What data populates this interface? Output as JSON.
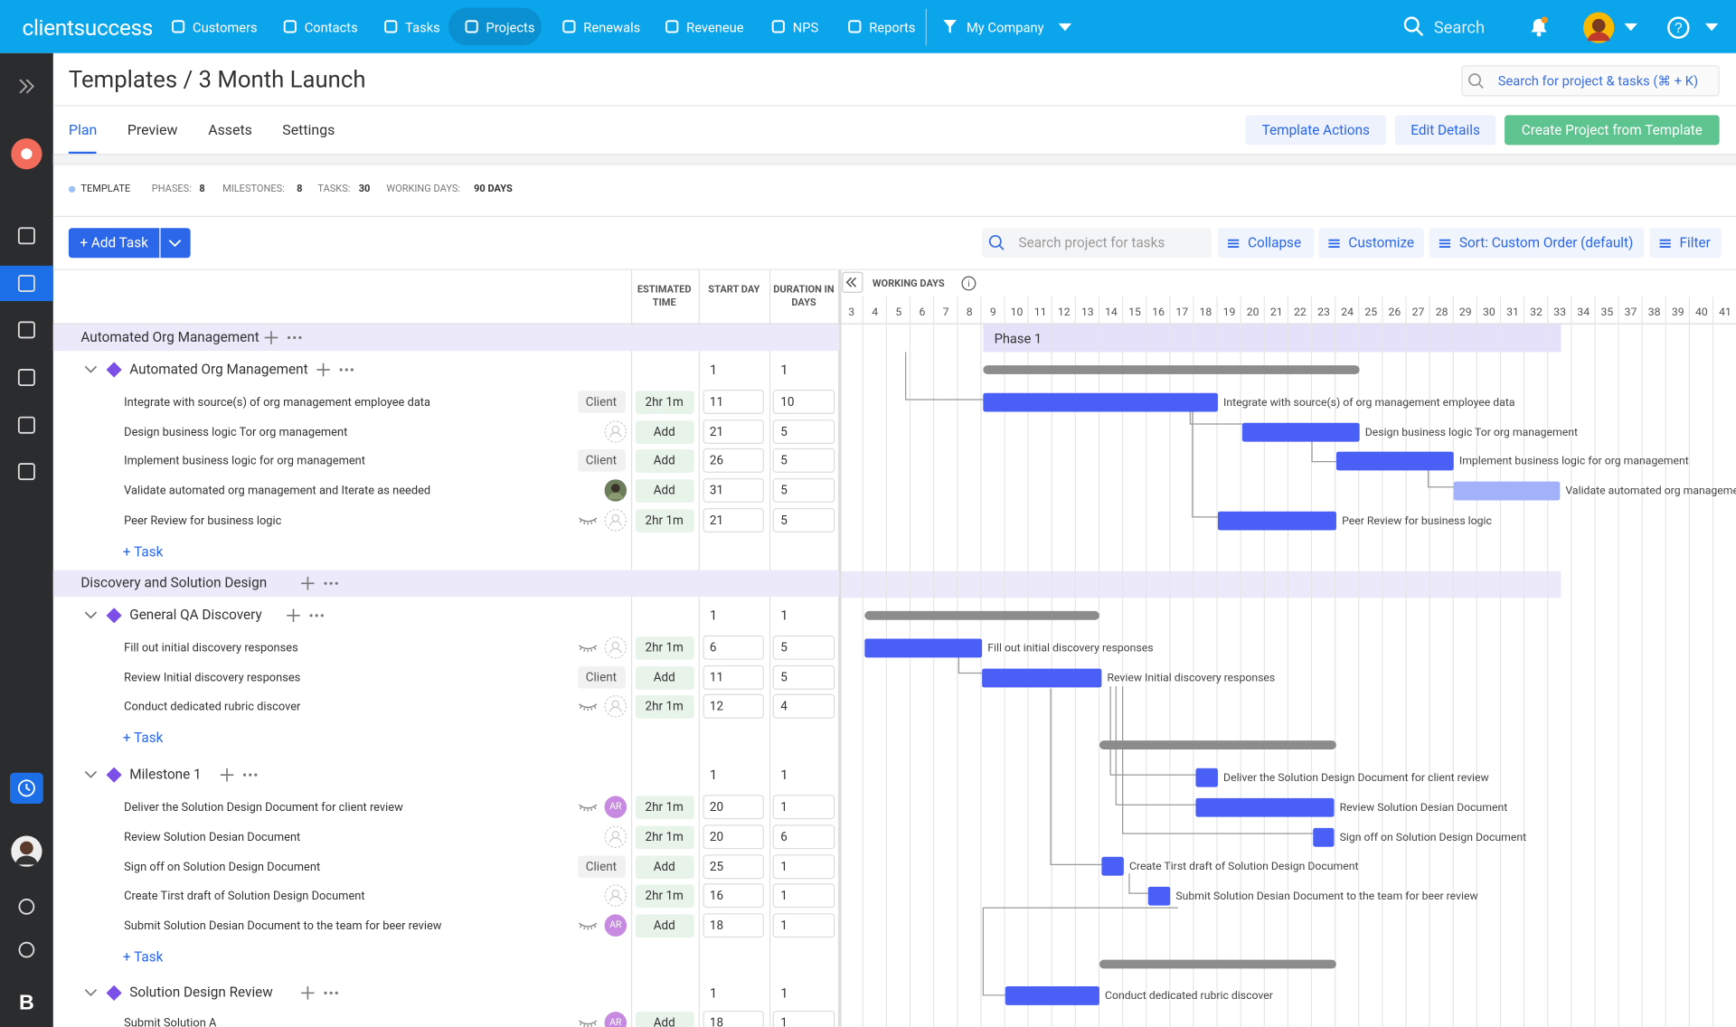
{
  "nav": {
    "brand": "clientsuccess",
    "items": [
      "Customers",
      "Contacts",
      "Tasks",
      "Projects",
      "Renewals",
      "Reveneue",
      "NPS",
      "Reports"
    ],
    "company": "My Company",
    "search": "Search"
  },
  "header": {
    "title": "Templates / 3 Month Launch",
    "search": "Search for project & tasks (⌘ + K)"
  },
  "tabs": [
    "Plan",
    "Preview",
    "Assets",
    "Settings"
  ],
  "actions": [
    "Template Actions",
    "Edit Details",
    "Create Project from Template"
  ],
  "stats": {
    "template": "TEMPLATE",
    "items": [
      {
        "label": "PHASES:",
        "value": 8
      },
      {
        "label": "MILESTONES:",
        "value": 8
      },
      {
        "label": "TASKS:",
        "value": 30
      },
      {
        "label": "WORKING DAYS:",
        "value": "90 DAYS"
      }
    ]
  },
  "toolbar": {
    "add": "+ Add Task",
    "search": "Search project for tasks",
    "buttons": [
      "Collapse",
      "Customize",
      "Sort: Custom Order (default)",
      "Filter"
    ]
  },
  "columns": [
    "ESTIMATED TIME",
    "START DAY",
    "DURATION IN DAYS"
  ],
  "gantt": {
    "label": "WORKING DAYS",
    "phase": "Phase 1",
    "days": [
      3,
      4,
      5,
      6,
      7,
      8,
      9,
      10,
      11,
      12,
      13,
      14,
      15,
      16,
      17,
      18,
      19,
      20,
      21,
      22,
      23,
      24,
      25,
      26,
      27,
      28,
      29,
      30,
      31,
      32,
      33,
      34,
      35,
      37,
      38,
      39,
      40,
      41
    ]
  },
  "sections": [
    {
      "name": "Automated Org Management",
      "milestones": [
        {
          "name": "Automated Org Management",
          "start": 1,
          "duration": 1,
          "add": "+ Task",
          "tasks": [
            {
              "name": "Integrate with source(s) of org management employee data",
              "owner": "Client",
              "time": "2hr 1m",
              "start": 11,
              "duration": 10
            },
            {
              "name": "Design business logic Tor org management",
              "owner": null,
              "time": "Add",
              "start": 21,
              "duration": 5
            },
            {
              "name": "Implement business logic for org management",
              "owner": "Client",
              "time": "Add",
              "start": 26,
              "duration": 5
            },
            {
              "name": "Validate automated org management and Iterate as needed",
              "owner": null,
              "time": "Add",
              "start": 31,
              "duration": 5
            },
            {
              "name": "Peer Review for business logic",
              "owner": null,
              "time": "2hr 1m",
              "start": 21,
              "duration": 5
            }
          ]
        }
      ]
    },
    {
      "name": "Discovery and Solution Design",
      "milestones": [
        {
          "name": "General QA Discovery",
          "start": 1,
          "duration": 1,
          "add": "+ Task",
          "tasks": [
            {
              "name": "Fill out initial discovery responses",
              "owner": null,
              "time": "2hr 1m",
              "start": 6,
              "duration": 5
            },
            {
              "name": "Review Initial discovery responses",
              "owner": "Client",
              "time": "Add",
              "start": 11,
              "duration": 5
            },
            {
              "name": "Conduct dedicated rubric discover",
              "owner": null,
              "time": "2hr 1m",
              "start": 12,
              "duration": 4
            }
          ]
        },
        {
          "name": "Milestone 1",
          "start": 1,
          "duration": 1,
          "add": "+ Task",
          "tasks": [
            {
              "name": "Deliver the Solution Design Document for client review",
              "owner": "AR",
              "time": "2hr 1m",
              "start": 20,
              "duration": 1
            },
            {
              "name": "Review Solution Desian Document",
              "owner": null,
              "time": "2hr 1m",
              "start": 20,
              "duration": 6
            },
            {
              "name": "Sign off on Solution Design Document",
              "owner": "Client",
              "time": "Add",
              "start": 25,
              "duration": 1
            },
            {
              "name": "Create Tirst draft of Solution Design Document",
              "owner": null,
              "time": "2hr 1m",
              "start": 16,
              "duration": 1
            },
            {
              "name": "Submit Solution Desian Document to the team for beer review",
              "owner": "AR",
              "time": "Add",
              "start": 18,
              "duration": 1
            }
          ]
        },
        {
          "name": "Solution Design Review",
          "start": 1,
          "duration": 1,
          "tasks": [
            {
              "name": "Submit Solution A",
              "owner": "AR",
              "time": "Add",
              "start": 18,
              "duration": 1
            }
          ]
        }
      ]
    }
  ]
}
